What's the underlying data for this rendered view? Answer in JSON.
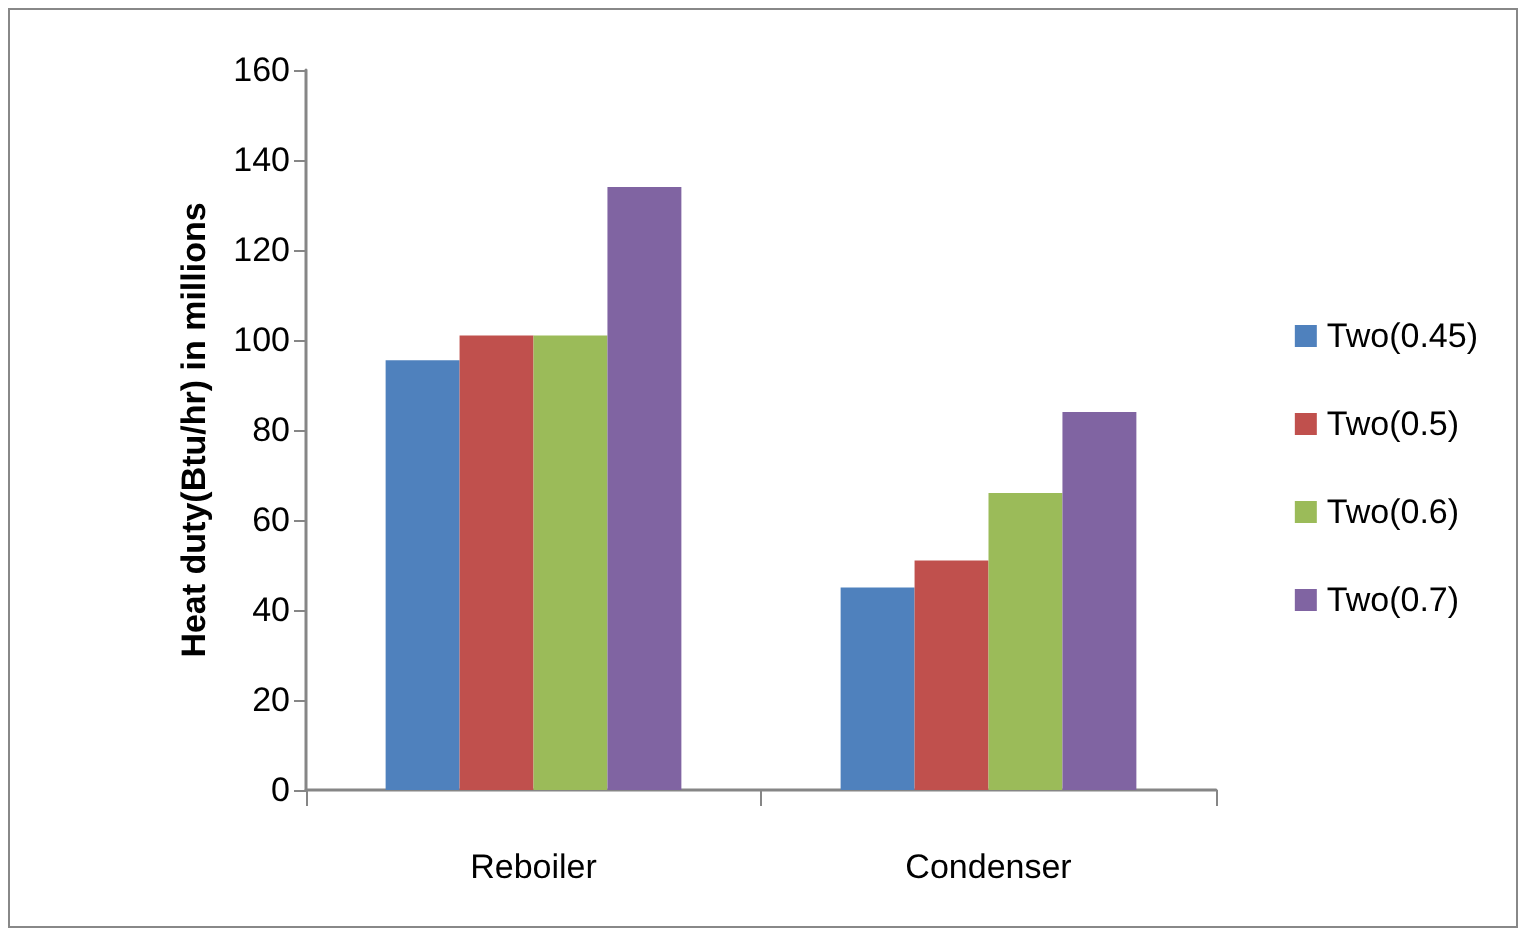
{
  "chart_data": {
    "type": "bar",
    "ylabel": "Heat duty(Btu/hr) in millions",
    "categories": [
      "Reboiler",
      "Condenser"
    ],
    "series": [
      {
        "name": "Two(0.45)",
        "color": "#4f81bd",
        "values": [
          95.5,
          45
        ]
      },
      {
        "name": "Two(0.5)",
        "color": "#c0504d",
        "values": [
          101,
          51
        ]
      },
      {
        "name": "Two(0.6)",
        "color": "#9bbb59",
        "values": [
          101,
          66
        ]
      },
      {
        "name": "Two(0.7)",
        "color": "#8064a2",
        "values": [
          134,
          84
        ]
      }
    ],
    "ylim": [
      0,
      160
    ],
    "yticks": [
      0,
      20,
      40,
      60,
      80,
      100,
      120,
      140,
      160
    ],
    "grid": false,
    "legend": "right"
  }
}
